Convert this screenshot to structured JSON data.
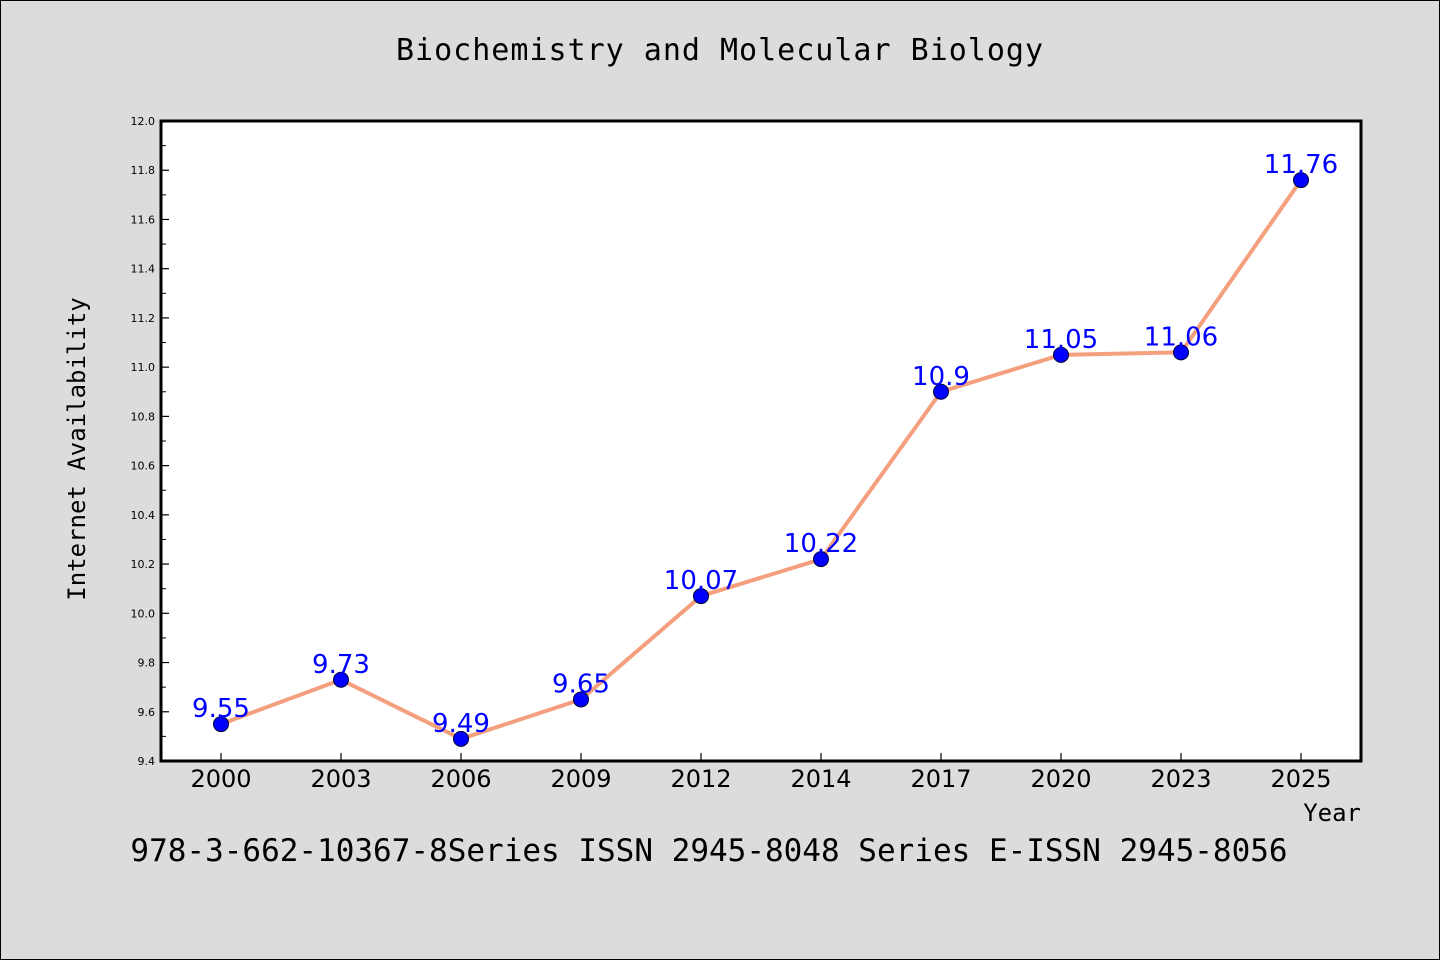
{
  "chart_data": {
    "type": "line",
    "title": "Biochemistry and Molecular Biology",
    "xlabel": "Year",
    "ylabel": "Internet Availability",
    "categories": [
      "2000",
      "2003",
      "2006",
      "2009",
      "2012",
      "2014",
      "2017",
      "2020",
      "2023",
      "2025"
    ],
    "series": [
      {
        "values": [
          9.55,
          9.73,
          9.49,
          9.65,
          10.07,
          10.22,
          10.9,
          11.05,
          11.06,
          11.76
        ],
        "data_labels": [
          "9.55",
          "9.73",
          "9.49",
          "9.65",
          "10.07",
          "10.22",
          "10.9",
          "11.05",
          "11.06",
          "11.76"
        ]
      }
    ],
    "ylim": [
      9.4,
      12.0
    ],
    "yticks": [
      "9.4",
      "9.6",
      "9.8",
      "10.0",
      "10.2",
      "10.4",
      "10.6",
      "10.8",
      "11.0",
      "11.2",
      "11.4",
      "11.6",
      "11.8",
      "12.0"
    ],
    "grid": false,
    "legend": "none",
    "colors": {
      "line": "#f4a07e",
      "marker": "#0000ff",
      "data_label": "#0000ff",
      "plot_background": "#ffffff",
      "figure_background": "#dcdcdc"
    }
  },
  "footer": {
    "text": "978-3-662-10367-8Series ISSN 2945-8048 Series E-ISSN 2945-8056"
  }
}
